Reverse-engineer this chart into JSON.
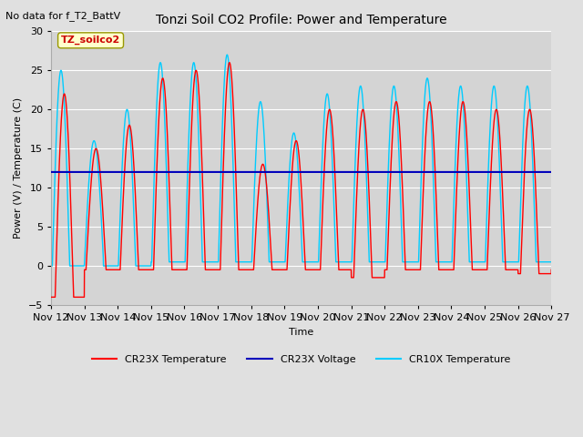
{
  "title": "Tonzi Soil CO2 Profile: Power and Temperature",
  "subtitle": "No data for f_T2_BattV",
  "ylabel": "Power (V) / Temperature (C)",
  "xlabel": "Time",
  "ylim": [
    -5,
    30
  ],
  "voltage_value": 12.0,
  "legend_entries": [
    "CR23X Temperature",
    "CR23X Voltage",
    "CR10X Temperature"
  ],
  "legend_colors": [
    "#ff0000",
    "#0000bb",
    "#00ccff"
  ],
  "box_label": "TZ_soilco2",
  "box_color": "#ffffcc",
  "box_text_color": "#cc0000",
  "fig_bg": "#e0e0e0",
  "plot_bg": "#d4d4d4",
  "grid_color": "#ffffff",
  "x_tick_labels": [
    "Nov 12",
    "Nov 13",
    "Nov 14",
    "Nov 15",
    "Nov 16",
    "Nov 17",
    "Nov 18",
    "Nov 19",
    "Nov 20",
    "Nov 21",
    "Nov 22",
    "Nov 23",
    "Nov 24",
    "Nov 25",
    "Nov 26",
    "Nov 27"
  ],
  "yticks": [
    -5,
    0,
    5,
    10,
    15,
    20,
    25,
    30
  ]
}
